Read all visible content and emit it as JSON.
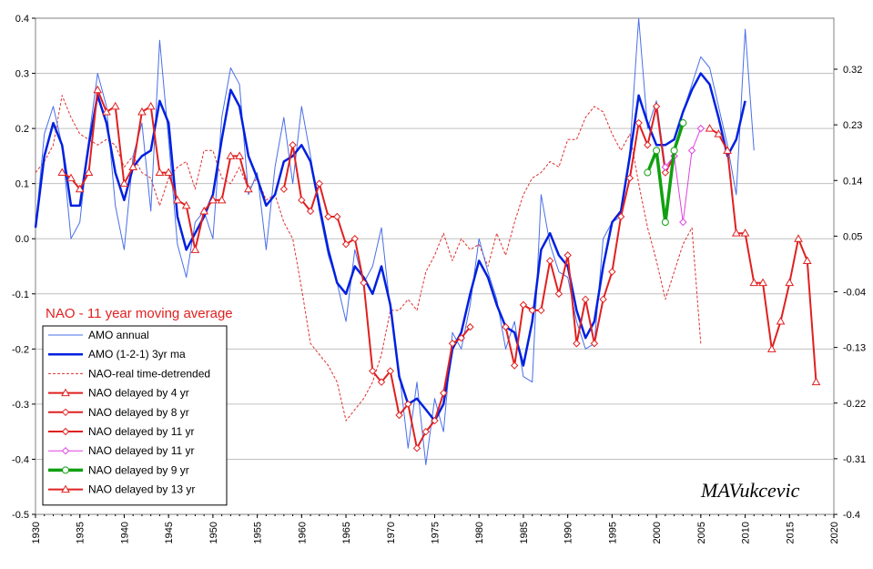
{
  "chart_data": {
    "type": "line",
    "annotation": "NAO - 11 year moving average",
    "watermark": "MAVukcevic",
    "x_range": [
      1930,
      2020
    ],
    "x_ticks": [
      "1930",
      "1935",
      "1940",
      "1945",
      "1950",
      "1955",
      "1960",
      "1965",
      "1970",
      "1975",
      "1980",
      "1985",
      "1990",
      "1995",
      "2000",
      "2005",
      "2010",
      "2015",
      "2020"
    ],
    "y_left_range": [
      -0.5,
      0.4
    ],
    "y_left_ticks": [
      "-0.5",
      "-0.4",
      "-0.3",
      "-0.2",
      "-0.1",
      "0.0",
      "0.1",
      "0.2",
      "0.3",
      "0.4"
    ],
    "y_right_ticks": [
      "-0.4",
      "-0.31",
      "-0.22",
      "-0.13",
      "-0.04",
      "0.05",
      "0.14",
      "0.23",
      "0.32"
    ],
    "grid": true,
    "legend_position": "bottom-left",
    "series": [
      {
        "name": "AMO annual",
        "color": "#4a6fe8",
        "style": "thin",
        "x": [
          1930,
          1931,
          1932,
          1933,
          1934,
          1935,
          1936,
          1937,
          1938,
          1939,
          1940,
          1941,
          1942,
          1943,
          1944,
          1945,
          1946,
          1947,
          1948,
          1949,
          1950,
          1951,
          1952,
          1953,
          1954,
          1955,
          1956,
          1957,
          1958,
          1959,
          1960,
          1961,
          1962,
          1963,
          1964,
          1965,
          1966,
          1967,
          1968,
          1969,
          1970,
          1971,
          1972,
          1973,
          1974,
          1975,
          1976,
          1977,
          1978,
          1979,
          1980,
          1981,
          1982,
          1983,
          1984,
          1985,
          1986,
          1987,
          1988,
          1989,
          1990,
          1991,
          1992,
          1993,
          1994,
          1995,
          1996,
          1997,
          1998,
          1999,
          2000,
          2001,
          2002,
          2003,
          2004,
          2005,
          2006,
          2007,
          2008,
          2009,
          2010,
          2011
        ],
        "y": [
          0.02,
          0.19,
          0.24,
          0.17,
          0.0,
          0.03,
          0.18,
          0.3,
          0.24,
          0.06,
          -0.02,
          0.15,
          0.21,
          0.05,
          0.36,
          0.18,
          -0.01,
          -0.07,
          0.03,
          0.05,
          0.0,
          0.22,
          0.31,
          0.28,
          0.08,
          0.12,
          -0.02,
          0.13,
          0.22,
          0.1,
          0.24,
          0.15,
          0.05,
          -0.03,
          -0.08,
          -0.15,
          -0.02,
          -0.08,
          -0.05,
          0.02,
          -0.13,
          -0.24,
          -0.38,
          -0.26,
          -0.41,
          -0.29,
          -0.35,
          -0.17,
          -0.2,
          -0.12,
          0.0,
          -0.06,
          -0.11,
          -0.2,
          -0.15,
          -0.25,
          -0.26,
          0.08,
          -0.01,
          -0.06,
          -0.07,
          -0.15,
          -0.2,
          -0.19,
          0.0,
          0.03,
          0.04,
          0.16,
          0.4,
          0.2,
          0.25,
          0.13,
          0.15,
          0.23,
          0.28,
          0.33,
          0.31,
          0.24,
          0.17,
          0.08,
          0.38,
          0.16
        ]
      },
      {
        "name": "AMO (1-2-1) 3yr ma",
        "color": "#0020e0",
        "style": "thick",
        "x": [
          1930,
          1931,
          1932,
          1933,
          1934,
          1935,
          1936,
          1937,
          1938,
          1939,
          1940,
          1941,
          1942,
          1943,
          1944,
          1945,
          1946,
          1947,
          1948,
          1949,
          1950,
          1951,
          1952,
          1953,
          1954,
          1955,
          1956,
          1957,
          1958,
          1959,
          1960,
          1961,
          1962,
          1963,
          1964,
          1965,
          1966,
          1967,
          1968,
          1969,
          1970,
          1971,
          1972,
          1973,
          1974,
          1975,
          1976,
          1977,
          1978,
          1979,
          1980,
          1981,
          1982,
          1983,
          1984,
          1985,
          1986,
          1987,
          1988,
          1989,
          1990,
          1991,
          1992,
          1993,
          1994,
          1995,
          1996,
          1997,
          1998,
          1999,
          2000,
          2001,
          2002,
          2003,
          2004,
          2005,
          2006,
          2007,
          2008,
          2009,
          2010
        ],
        "y": [
          0.02,
          0.15,
          0.21,
          0.17,
          0.06,
          0.06,
          0.17,
          0.26,
          0.21,
          0.12,
          0.07,
          0.13,
          0.15,
          0.16,
          0.25,
          0.21,
          0.04,
          -0.02,
          0.01,
          0.04,
          0.08,
          0.18,
          0.27,
          0.24,
          0.15,
          0.11,
          0.06,
          0.08,
          0.14,
          0.15,
          0.17,
          0.14,
          0.06,
          -0.02,
          -0.08,
          -0.1,
          -0.05,
          -0.07,
          -0.1,
          -0.05,
          -0.12,
          -0.25,
          -0.3,
          -0.29,
          -0.31,
          -0.33,
          -0.3,
          -0.2,
          -0.17,
          -0.1,
          -0.04,
          -0.07,
          -0.12,
          -0.16,
          -0.17,
          -0.23,
          -0.15,
          -0.02,
          0.01,
          -0.03,
          -0.05,
          -0.13,
          -0.18,
          -0.15,
          -0.05,
          0.03,
          0.05,
          0.15,
          0.26,
          0.21,
          0.17,
          0.17,
          0.18,
          0.23,
          0.27,
          0.3,
          0.28,
          0.22,
          0.15,
          0.18,
          0.25
        ]
      },
      {
        "name": "NAO-real time-detrended",
        "color": "#e03030",
        "style": "dashed",
        "x": [
          1930,
          1931,
          1932,
          1933,
          1934,
          1935,
          1936,
          1937,
          1938,
          1939,
          1940,
          1941,
          1942,
          1943,
          1944,
          1945,
          1946,
          1947,
          1948,
          1949,
          1950,
          1951,
          1952,
          1953,
          1954,
          1955,
          1956,
          1957,
          1958,
          1959,
          1960,
          1961,
          1962,
          1963,
          1964,
          1965,
          1966,
          1967,
          1968,
          1969,
          1970,
          1971,
          1972,
          1973,
          1974,
          1975,
          1976,
          1977,
          1978,
          1979,
          1980,
          1981,
          1982,
          1983,
          1984,
          1985,
          1986,
          1987,
          1988,
          1989,
          1990,
          1991,
          1992,
          1993,
          1994,
          1995,
          1996,
          1997,
          1998,
          1999,
          2000,
          2001,
          2002,
          2003,
          2004,
          2005
        ],
        "y": [
          0.12,
          0.14,
          0.17,
          0.26,
          0.22,
          0.19,
          0.18,
          0.17,
          0.18,
          0.17,
          0.13,
          0.15,
          0.12,
          0.11,
          0.06,
          0.11,
          0.13,
          0.14,
          0.09,
          0.16,
          0.16,
          0.11,
          0.1,
          0.13,
          0.09,
          0.11,
          0.07,
          0.08,
          0.03,
          0.0,
          -0.09,
          -0.19,
          -0.21,
          -0.23,
          -0.26,
          -0.33,
          -0.31,
          -0.29,
          -0.26,
          -0.21,
          -0.13,
          -0.13,
          -0.11,
          -0.13,
          -0.06,
          -0.03,
          0.01,
          -0.04,
          0.0,
          -0.02,
          -0.01,
          -0.05,
          0.01,
          -0.03,
          0.03,
          0.08,
          0.11,
          0.12,
          0.14,
          0.13,
          0.18,
          0.18,
          0.22,
          0.24,
          0.23,
          0.19,
          0.16,
          0.19,
          0.1,
          0.02,
          -0.04,
          -0.11,
          -0.06,
          -0.01,
          0.02,
          -0.19
        ]
      },
      {
        "name": "NAO delayed by 4 yr",
        "color": "#e02020",
        "marker": "triangle",
        "x": [
          1933,
          1934,
          1935,
          1936,
          1937,
          1938,
          1939,
          1940,
          1941,
          1942,
          1943,
          1944,
          1945,
          1946,
          1947,
          1948,
          1949,
          1950,
          1951,
          1952,
          1953,
          1954
        ],
        "y": [
          0.12,
          0.11,
          0.09,
          0.12,
          0.27,
          0.23,
          0.24,
          0.1,
          0.13,
          0.23,
          0.24,
          0.12,
          0.12,
          0.07,
          0.06,
          -0.02,
          0.05,
          0.07,
          0.07,
          0.15,
          0.15,
          0.09
        ]
      },
      {
        "name": "NAO delayed by 8 yr",
        "color": "#e02020",
        "marker": "diamond",
        "x": [
          1958,
          1959,
          1960,
          1961,
          1962,
          1963,
          1964,
          1965,
          1966,
          1967,
          1968,
          1969,
          1970,
          1971,
          1972,
          1973,
          1974,
          1975,
          1976,
          1977,
          1978,
          1979
        ],
        "y": [
          0.09,
          0.17,
          0.07,
          0.05,
          0.1,
          0.04,
          0.04,
          -0.01,
          0.0,
          -0.08,
          -0.24,
          -0.26,
          -0.24,
          -0.32,
          -0.3,
          -0.38,
          -0.35,
          -0.33,
          -0.28,
          -0.19,
          -0.18,
          -0.16
        ]
      },
      {
        "name": "NAO delayed by 11 yr",
        "color": "#e02020",
        "marker": "diamond",
        "x": [
          1983,
          1984,
          1985,
          1986,
          1987,
          1988,
          1989,
          1990,
          1991,
          1992,
          1993,
          1994,
          1995,
          1996,
          1997,
          1998,
          1999,
          2000,
          2001,
          2002
        ],
        "y": [
          -0.16,
          -0.23,
          -0.12,
          -0.13,
          -0.13,
          -0.04,
          -0.1,
          -0.03,
          -0.19,
          -0.11,
          -0.19,
          -0.11,
          -0.06,
          0.04,
          0.11,
          0.21,
          0.17,
          0.24,
          0.12,
          0.15
        ]
      },
      {
        "name": "NAO delayed by 11 yr",
        "color": "#e040e0",
        "marker": "diamond",
        "x": [
          2001,
          2002,
          2003,
          2004,
          2005
        ],
        "y": [
          0.13,
          0.15,
          0.03,
          0.16,
          0.2
        ]
      },
      {
        "name": "NAO delayed by 9 yr",
        "color": "#10a010",
        "marker": "circle",
        "x": [
          1999,
          2000,
          2001,
          2002,
          2003
        ],
        "y": [
          0.12,
          0.16,
          0.03,
          0.16,
          0.21
        ]
      },
      {
        "name": "NAO delayed by 13 yr",
        "color": "#e02020",
        "marker": "triangle",
        "x": [
          2006,
          2007,
          2008,
          2009,
          2010,
          2011,
          2012,
          2013,
          2014,
          2015,
          2016,
          2017,
          2018
        ],
        "y": [
          0.2,
          0.19,
          0.16,
          0.01,
          0.01,
          -0.08,
          -0.08,
          -0.2,
          -0.15,
          -0.08,
          0.0,
          -0.04,
          -0.26
        ]
      }
    ]
  }
}
